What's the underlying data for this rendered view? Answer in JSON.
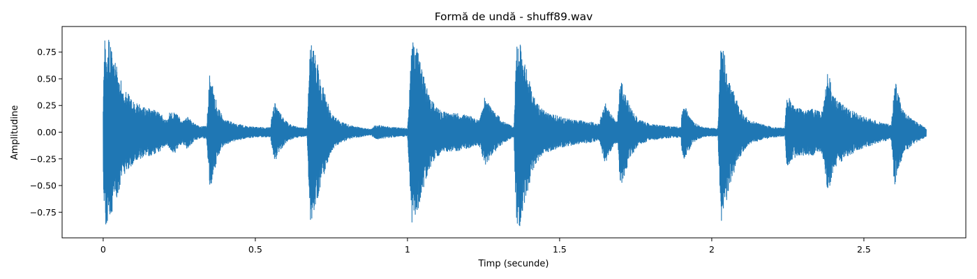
{
  "chart_data": {
    "type": "line",
    "title": "Formă de undă - shuff89.wav",
    "xlabel": "Timp (secunde)",
    "ylabel": "Amplitudine",
    "xlim": [
      -0.135,
      2.835
    ],
    "ylim": [
      -0.99,
      0.99
    ],
    "x_ticks": [
      0,
      0.5,
      1,
      1.5,
      2,
      2.5
    ],
    "x_tick_labels": [
      "0",
      "0.5",
      "1",
      "1.5",
      "2",
      "2.5"
    ],
    "y_ticks": [
      -0.75,
      -0.5,
      -0.25,
      0.0,
      0.25,
      0.5,
      0.75
    ],
    "y_tick_labels": [
      "−0.75",
      "−0.50",
      "−0.25",
      "0.00",
      "0.25",
      "0.50",
      "0.75"
    ],
    "grid": false,
    "duration_s": 2.705,
    "series": [
      {
        "color": "#1f77b4",
        "envelope_points": [
          [
            0.0,
            0.35
          ],
          [
            0.003,
            0.87
          ],
          [
            0.015,
            0.9
          ],
          [
            0.03,
            0.75
          ],
          [
            0.05,
            0.57
          ],
          [
            0.07,
            0.4
          ],
          [
            0.1,
            0.3
          ],
          [
            0.13,
            0.24
          ],
          [
            0.16,
            0.22
          ],
          [
            0.19,
            0.18
          ],
          [
            0.2,
            0.14
          ],
          [
            0.21,
            0.12
          ],
          [
            0.215,
            0.17
          ],
          [
            0.22,
            0.19
          ],
          [
            0.235,
            0.2
          ],
          [
            0.25,
            0.15
          ],
          [
            0.26,
            0.1
          ],
          [
            0.265,
            0.12
          ],
          [
            0.275,
            0.16
          ],
          [
            0.285,
            0.13
          ],
          [
            0.3,
            0.08
          ],
          [
            0.32,
            0.06
          ],
          [
            0.34,
            0.06
          ],
          [
            0.345,
            0.3
          ],
          [
            0.35,
            0.55
          ],
          [
            0.36,
            0.44
          ],
          [
            0.375,
            0.25
          ],
          [
            0.4,
            0.12
          ],
          [
            0.43,
            0.09
          ],
          [
            0.47,
            0.06
          ],
          [
            0.5,
            0.05
          ],
          [
            0.53,
            0.05
          ],
          [
            0.55,
            0.05
          ],
          [
            0.555,
            0.18
          ],
          [
            0.565,
            0.28
          ],
          [
            0.575,
            0.22
          ],
          [
            0.59,
            0.14
          ],
          [
            0.61,
            0.08
          ],
          [
            0.64,
            0.05
          ],
          [
            0.67,
            0.04
          ],
          [
            0.675,
            0.45
          ],
          [
            0.68,
            0.84
          ],
          [
            0.69,
            0.8
          ],
          [
            0.7,
            0.7
          ],
          [
            0.72,
            0.45
          ],
          [
            0.75,
            0.18
          ],
          [
            0.78,
            0.1
          ],
          [
            0.82,
            0.06
          ],
          [
            0.86,
            0.04
          ],
          [
            0.88,
            0.03
          ],
          [
            0.89,
            0.06
          ],
          [
            0.9,
            0.07
          ],
          [
            0.95,
            0.05
          ],
          [
            1.0,
            0.04
          ],
          [
            1.01,
            0.6
          ],
          [
            1.015,
            0.89
          ],
          [
            1.025,
            0.85
          ],
          [
            1.04,
            0.7
          ],
          [
            1.06,
            0.45
          ],
          [
            1.08,
            0.3
          ],
          [
            1.11,
            0.2
          ],
          [
            1.14,
            0.18
          ],
          [
            1.17,
            0.18
          ],
          [
            1.2,
            0.16
          ],
          [
            1.23,
            0.12
          ],
          [
            1.24,
            0.15
          ],
          [
            1.255,
            0.35
          ],
          [
            1.27,
            0.25
          ],
          [
            1.3,
            0.15
          ],
          [
            1.33,
            0.08
          ],
          [
            1.35,
            0.05
          ],
          [
            1.355,
            0.6
          ],
          [
            1.36,
            0.9
          ],
          [
            1.37,
            0.88
          ],
          [
            1.38,
            0.75
          ],
          [
            1.4,
            0.5
          ],
          [
            1.42,
            0.3
          ],
          [
            1.45,
            0.2
          ],
          [
            1.5,
            0.15
          ],
          [
            1.55,
            0.12
          ],
          [
            1.6,
            0.1
          ],
          [
            1.63,
            0.08
          ],
          [
            1.64,
            0.2
          ],
          [
            1.65,
            0.3
          ],
          [
            1.66,
            0.22
          ],
          [
            1.68,
            0.12
          ],
          [
            1.69,
            0.1
          ],
          [
            1.695,
            0.3
          ],
          [
            1.7,
            0.57
          ],
          [
            1.71,
            0.45
          ],
          [
            1.73,
            0.25
          ],
          [
            1.76,
            0.12
          ],
          [
            1.8,
            0.08
          ],
          [
            1.85,
            0.06
          ],
          [
            1.9,
            0.05
          ],
          [
            1.9,
            0.15
          ],
          [
            1.91,
            0.28
          ],
          [
            1.92,
            0.2
          ],
          [
            1.94,
            0.1
          ],
          [
            1.97,
            0.05
          ],
          [
            2.0,
            0.04
          ],
          [
            2.02,
            0.04
          ],
          [
            2.025,
            0.45
          ],
          [
            2.03,
            0.85
          ],
          [
            2.04,
            0.75
          ],
          [
            2.06,
            0.5
          ],
          [
            2.09,
            0.25
          ],
          [
            2.12,
            0.12
          ],
          [
            2.16,
            0.08
          ],
          [
            2.2,
            0.05
          ],
          [
            2.24,
            0.04
          ],
          [
            2.245,
            0.28
          ],
          [
            2.25,
            0.35
          ],
          [
            2.27,
            0.25
          ],
          [
            2.3,
            0.22
          ],
          [
            2.33,
            0.22
          ],
          [
            2.36,
            0.2
          ],
          [
            2.37,
            0.3
          ],
          [
            2.38,
            0.58
          ],
          [
            2.39,
            0.5
          ],
          [
            2.4,
            0.35
          ],
          [
            2.45,
            0.22
          ],
          [
            2.5,
            0.15
          ],
          [
            2.55,
            0.1
          ],
          [
            2.59,
            0.07
          ],
          [
            2.595,
            0.25
          ],
          [
            2.6,
            0.52
          ],
          [
            2.61,
            0.4
          ],
          [
            2.63,
            0.2
          ],
          [
            2.66,
            0.12
          ],
          [
            2.69,
            0.07
          ],
          [
            2.705,
            0.04
          ]
        ]
      }
    ]
  }
}
